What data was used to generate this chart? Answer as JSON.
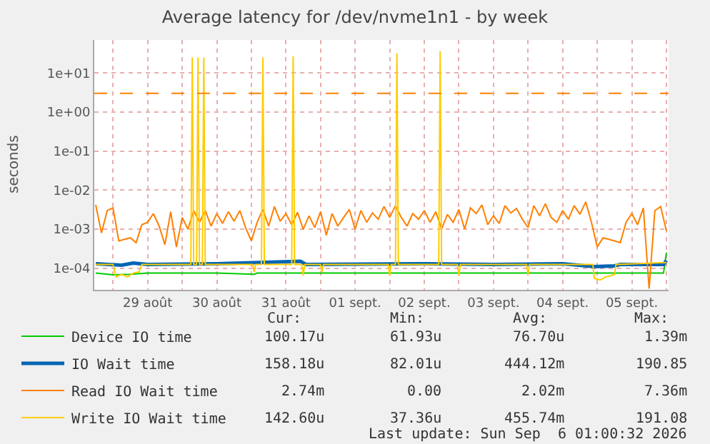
{
  "chart_data": {
    "type": "line",
    "title": "Average latency for /dev/nvme1n1 - by week",
    "ylabel": "seconds",
    "log": "y",
    "grid": true,
    "marker": "none",
    "line_style": "solid",
    "legend": "bottom left",
    "xlim": [
      "2026-08-28T17:30",
      "2026-09-06T00:45"
    ],
    "xticks": [
      {
        "value": "2026-08-29T00:00",
        "label": null
      },
      {
        "value": "2026-08-29T12:00",
        "label": "29 août"
      },
      {
        "value": "2026-08-30T00:00",
        "label": null
      },
      {
        "value": "2026-08-30T12:00",
        "label": "30 août"
      },
      {
        "value": "2026-08-31T00:00",
        "label": null
      },
      {
        "value": "2026-08-31T12:00",
        "label": "31 août"
      },
      {
        "value": "2026-09-01T00:00",
        "label": null
      },
      {
        "value": "2026-09-01T12:00",
        "label": "01 sept."
      },
      {
        "value": "2026-09-02T00:00",
        "label": null
      },
      {
        "value": "2026-09-02T12:00",
        "label": "02 sept."
      },
      {
        "value": "2026-09-03T00:00",
        "label": null
      },
      {
        "value": "2026-09-03T12:00",
        "label": "03 sept."
      },
      {
        "value": "2026-09-04T00:00",
        "label": null
      },
      {
        "value": "2026-09-04T12:00",
        "label": "04 sept."
      },
      {
        "value": "2026-09-05T00:00",
        "label": null
      },
      {
        "value": "2026-09-05T12:00",
        "label": "05 sept."
      },
      {
        "value": "2026-09-06T00:00",
        "label": null
      }
    ],
    "ylim": [
      2.8e-05,
      70
    ],
    "yticks": [
      {
        "value": 0.0001,
        "label": "1e-04"
      },
      {
        "value": 0.001,
        "label": "1e-03"
      },
      {
        "value": 0.01,
        "label": "1e-02"
      },
      {
        "value": 0.1,
        "label": "1e-01"
      },
      {
        "value": 1,
        "label": "1e+00"
      },
      {
        "value": 10,
        "label": "1e+01"
      }
    ],
    "ref_lines": [
      {
        "axis": "y",
        "value": 3,
        "color": "#ff8000",
        "line_style": "dashed"
      }
    ],
    "series": [
      {
        "name": "Device IO time",
        "color": "#00cc00",
        "x": [
          "2026-08-28T18:00",
          "2026-08-29T00:00",
          "2026-08-29T06:00",
          "2026-08-29T12:00",
          "2026-08-30T12:00",
          "2026-08-31T01:00",
          "2026-08-31T02:00",
          "2026-09-01T12:00",
          "2026-09-02T12:00",
          "2026-09-03T12:00",
          "2026-09-04T12:00",
          "2026-09-05T12:00",
          "2026-09-05T23:00",
          "2026-09-06T00:00"
        ],
        "values": [
          7.5e-05,
          6.8e-05,
          7e-05,
          7.5e-05,
          7.5e-05,
          7e-05,
          7.5e-05,
          7.5e-05,
          7.5e-05,
          7.5e-05,
          7.5e-05,
          7.5e-05,
          7.5e-05,
          0.00025
        ]
      },
      {
        "name": "IO Wait time",
        "color": "#0066b3",
        "x": [
          "2026-08-28T18:00",
          "2026-08-29T03:00",
          "2026-08-29T07:00",
          "2026-08-29T12:00",
          "2026-08-30T12:00",
          "2026-08-31T17:00",
          "2026-08-31T19:00",
          "2026-09-02T12:00",
          "2026-09-03T12:00",
          "2026-09-04T12:00",
          "2026-09-04T23:00",
          "2026-09-05T06:00",
          "2026-09-05T08:00",
          "2026-09-05T23:00",
          "2026-09-06T00:00"
        ],
        "values": [
          0.00013,
          0.00012,
          0.000135,
          0.000125,
          0.00013,
          0.00015,
          0.000125,
          0.00013,
          0.000125,
          0.00013,
          0.00011,
          0.000115,
          0.000125,
          0.000125,
          0.000158
        ]
      },
      {
        "name": "Read IO Wait time",
        "color": "#ff8000",
        "x": [
          "2026-08-28T18:00",
          "2026-08-28T20:00",
          "2026-08-28T22:00",
          "2026-08-29T00:00",
          "2026-08-29T02:00",
          "2026-08-29T04:00",
          "2026-08-29T06:00",
          "2026-08-29T08:00",
          "2026-08-29T10:00",
          "2026-08-29T12:00",
          "2026-08-29T14:00",
          "2026-08-29T16:00",
          "2026-08-29T18:00",
          "2026-08-29T20:00",
          "2026-08-29T22:00",
          "2026-08-30T00:00",
          "2026-08-30T02:00",
          "2026-08-30T04:00",
          "2026-08-30T06:00",
          "2026-08-30T08:00",
          "2026-08-30T10:00",
          "2026-08-30T12:00",
          "2026-08-30T14:00",
          "2026-08-30T16:00",
          "2026-08-30T18:00",
          "2026-08-30T20:00",
          "2026-08-30T22:00",
          "2026-08-31T00:00",
          "2026-08-31T02:00",
          "2026-08-31T04:00",
          "2026-08-31T06:00",
          "2026-08-31T08:00",
          "2026-08-31T10:00",
          "2026-08-31T12:00",
          "2026-08-31T14:00",
          "2026-08-31T16:00",
          "2026-08-31T18:00",
          "2026-08-31T20:00",
          "2026-08-31T22:00",
          "2026-09-01T00:00",
          "2026-09-01T02:00",
          "2026-09-01T04:00",
          "2026-09-01T06:00",
          "2026-09-01T08:00",
          "2026-09-01T10:00",
          "2026-09-01T12:00",
          "2026-09-01T14:00",
          "2026-09-01T16:00",
          "2026-09-01T18:00",
          "2026-09-01T20:00",
          "2026-09-01T22:00",
          "2026-09-02T00:00",
          "2026-09-02T02:00",
          "2026-09-02T04:00",
          "2026-09-02T06:00",
          "2026-09-02T08:00",
          "2026-09-02T10:00",
          "2026-09-02T12:00",
          "2026-09-02T14:00",
          "2026-09-02T16:00",
          "2026-09-02T18:00",
          "2026-09-02T20:00",
          "2026-09-02T22:00",
          "2026-09-03T00:00",
          "2026-09-03T02:00",
          "2026-09-03T04:00",
          "2026-09-03T06:00",
          "2026-09-03T08:00",
          "2026-09-03T10:00",
          "2026-09-03T12:00",
          "2026-09-03T14:00",
          "2026-09-03T16:00",
          "2026-09-03T18:00",
          "2026-09-03T20:00",
          "2026-09-03T22:00",
          "2026-09-04T00:00",
          "2026-09-04T02:00",
          "2026-09-04T04:00",
          "2026-09-04T06:00",
          "2026-09-04T08:00",
          "2026-09-04T10:00",
          "2026-09-04T12:00",
          "2026-09-04T14:00",
          "2026-09-04T16:00",
          "2026-09-04T18:00",
          "2026-09-04T20:00",
          "2026-09-04T22:00",
          "2026-09-05T00:00",
          "2026-09-05T02:00",
          "2026-09-05T04:00",
          "2026-09-05T06:00",
          "2026-09-05T08:00",
          "2026-09-05T10:00",
          "2026-09-05T12:00",
          "2026-09-05T14:00",
          "2026-09-05T16:00",
          "2026-09-05T18:00",
          "2026-09-05T20:00",
          "2026-09-05T22:00",
          "2026-09-06T00:00"
        ],
        "values": [
          0.0042,
          0.0008,
          0.003,
          0.0035,
          0.0005,
          0.00055,
          0.0006,
          0.00045,
          0.0013,
          0.0015,
          0.0025,
          0.0012,
          0.0004,
          0.0028,
          0.00035,
          0.002,
          0.001,
          0.003,
          0.0015,
          0.003,
          0.0012,
          0.0025,
          0.0014,
          0.0028,
          0.0016,
          0.003,
          0.0011,
          0.0005,
          0.0015,
          0.0032,
          0.0012,
          0.0038,
          0.0016,
          0.0025,
          0.0013,
          0.0027,
          0.001,
          0.0022,
          0.0011,
          0.0028,
          0.0007,
          0.0025,
          0.0012,
          0.002,
          0.0032,
          0.001,
          0.003,
          0.0015,
          0.0026,
          0.0018,
          0.0038,
          0.002,
          0.004,
          0.002,
          0.0012,
          0.0025,
          0.0018,
          0.003,
          0.0015,
          0.0028,
          0.001,
          0.0024,
          0.0015,
          0.0032,
          0.001,
          0.0035,
          0.0025,
          0.0042,
          0.0013,
          0.0022,
          0.0014,
          0.004,
          0.0026,
          0.0034,
          0.0018,
          0.0011,
          0.004,
          0.0022,
          0.0045,
          0.002,
          0.0015,
          0.003,
          0.0018,
          0.004,
          0.0024,
          0.005,
          0.0015,
          0.00035,
          0.0006,
          0.00055,
          0.0005,
          0.00045,
          0.0015,
          0.0025,
          0.0013,
          0.0035,
          3e-05,
          0.003,
          0.0038,
          0.0009
        ]
      },
      {
        "name": "Write IO Wait time",
        "color": "#ffcc00",
        "x": [
          "2026-08-28T18:00",
          "2026-08-29T00:00",
          "2026-08-29T01:00",
          "2026-08-29T03:00",
          "2026-08-29T05:00",
          "2026-08-29T07:00",
          "2026-08-29T09:00",
          "2026-08-29T10:00",
          "2026-08-30T03:00",
          "2026-08-30T03:30",
          "2026-08-30T04:00",
          "2026-08-30T05:00",
          "2026-08-30T05:30",
          "2026-08-30T06:00",
          "2026-08-30T07:00",
          "2026-08-30T07:30",
          "2026-08-30T08:00",
          "2026-08-31T00:30",
          "2026-08-31T01:00",
          "2026-08-31T01:30",
          "2026-08-31T03:30",
          "2026-08-31T04:00",
          "2026-08-31T04:30",
          "2026-08-31T14:00",
          "2026-08-31T14:30",
          "2026-08-31T15:00",
          "2026-08-31T17:30",
          "2026-08-31T18:00",
          "2026-08-31T18:30",
          "2026-09-01T00:00",
          "2026-09-01T00:30",
          "2026-09-01T01:00",
          "2026-09-01T23:30",
          "2026-09-02T00:00",
          "2026-09-02T00:30",
          "2026-09-02T02:00",
          "2026-09-02T02:30",
          "2026-09-02T03:00",
          "2026-09-02T17:00",
          "2026-09-02T17:30",
          "2026-09-02T18:00",
          "2026-09-02T23:30",
          "2026-09-03T00:00",
          "2026-09-03T00:30",
          "2026-09-03T23:30",
          "2026-09-04T00:00",
          "2026-09-04T00:30",
          "2026-09-04T22:30",
          "2026-09-04T23:00",
          "2026-09-05T01:00",
          "2026-09-05T03:00",
          "2026-09-05T05:00",
          "2026-09-05T06:00",
          "2026-09-05T06:30",
          "2026-09-06T00:00"
        ],
        "values": [
          0.000125,
          0.000125,
          6e-05,
          7e-05,
          6e-05,
          7.5e-05,
          8e-05,
          0.000125,
          0.000125,
          25,
          0.000125,
          0.000125,
          25,
          0.000125,
          0.000125,
          25,
          0.000125,
          0.000125,
          8e-05,
          0.000125,
          0.000125,
          25,
          0.000125,
          0.000125,
          27,
          0.000125,
          0.000125,
          6.5e-05,
          0.000125,
          0.000125,
          8e-05,
          0.000125,
          0.000125,
          6.5e-05,
          0.000125,
          0.000125,
          32,
          0.000125,
          0.000125,
          36,
          0.000125,
          0.000125,
          6.5e-05,
          0.000125,
          0.000125,
          7e-05,
          0.000125,
          0.000125,
          5.5e-05,
          5e-05,
          6e-05,
          6.5e-05,
          7e-05,
          0.000125,
          0.00014
        ]
      }
    ],
    "annotations": [
      "Cur:",
      "Min:",
      "Avg:",
      "Max:",
      "100.17u",
      "61.93u",
      "76.70u",
      "1.39m",
      "158.18u",
      "82.01u",
      "444.12m",
      "190.85",
      "2.74m",
      "0.00",
      "2.02m",
      "7.36m",
      "142.60u",
      "37.36u",
      "455.74m",
      "191.08",
      "Last update: Sun Sep  6 01:00:32 2026"
    ]
  }
}
